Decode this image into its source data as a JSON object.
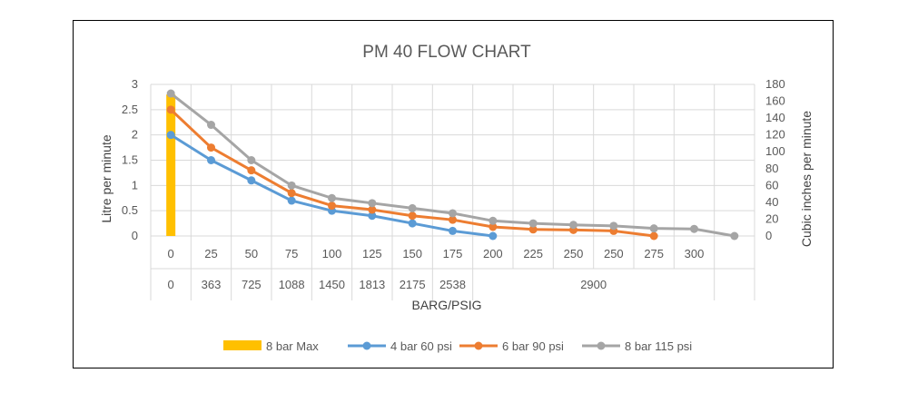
{
  "chart_data": {
    "type": "line",
    "title": "PM 40 FLOW CHART",
    "xlabel": "BARG/PSIG",
    "ylabel": "Litre per minute",
    "y2label": "Cubic inches per minute",
    "ylim": [
      0,
      3
    ],
    "y_ticks": [
      "0",
      "0.5",
      "1",
      "1.5",
      "2",
      "2.5",
      "3"
    ],
    "y2lim": [
      0,
      180
    ],
    "y2_ticks": [
      "0",
      "20",
      "40",
      "60",
      "80",
      "100",
      "120",
      "140",
      "160",
      "180"
    ],
    "categories": [
      "0",
      "25",
      "50",
      "75",
      "100",
      "125",
      "150",
      "175",
      "200",
      "225",
      "250",
      "250",
      "275",
      "300",
      ""
    ],
    "psig_row": [
      {
        "label": "0",
        "span": 1
      },
      {
        "label": "363",
        "span": 1
      },
      {
        "label": "725",
        "span": 1
      },
      {
        "label": "1088",
        "span": 1
      },
      {
        "label": "1450",
        "span": 1
      },
      {
        "label": "1813",
        "span": 1
      },
      {
        "label": "2175",
        "span": 1
      },
      {
        "label": "2538",
        "span": 1
      },
      {
        "label": "2900",
        "span": 6
      },
      {
        "label": "",
        "span": 1
      }
    ],
    "legend_position": "bottom",
    "grid": true,
    "series": [
      {
        "name": "8 bar Max",
        "kind": "bar",
        "color": "#FFC000",
        "values": [
          2.8,
          null,
          null,
          null,
          null,
          null,
          null,
          null,
          null,
          null,
          null,
          null,
          null,
          null,
          null
        ]
      },
      {
        "name": "4 bar 60 psi",
        "kind": "line",
        "color": "#5B9BD5",
        "values": [
          2.0,
          1.5,
          1.1,
          0.7,
          0.5,
          0.4,
          0.25,
          0.1,
          0.0,
          null,
          null,
          null,
          null,
          null,
          null
        ]
      },
      {
        "name": "6 bar 90 psi",
        "kind": "line",
        "color": "#ED7D31",
        "values": [
          2.5,
          1.75,
          1.3,
          0.85,
          0.6,
          0.52,
          0.4,
          0.32,
          0.18,
          0.13,
          0.12,
          0.1,
          0.0,
          null,
          null
        ]
      },
      {
        "name": "8 bar 115 psi",
        "kind": "line",
        "color": "#A5A5A5",
        "values": [
          2.82,
          2.2,
          1.5,
          1.0,
          0.75,
          0.65,
          0.55,
          0.45,
          0.3,
          0.25,
          0.22,
          0.2,
          0.15,
          0.14,
          0.0
        ]
      }
    ]
  }
}
